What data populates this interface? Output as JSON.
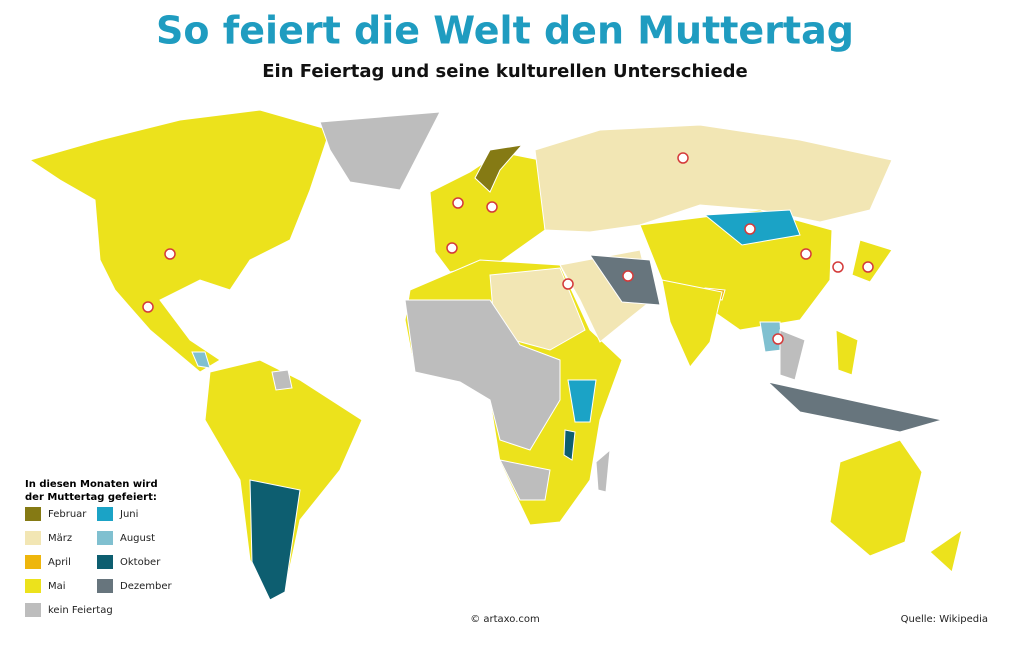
{
  "header": {
    "title": "So feiert die Welt den Muttertag",
    "subtitle": "Ein Feiertag und seine kulturellen Unterschiede"
  },
  "legend": {
    "heading": [
      "In diesen Monaten wird",
      "der Muttertag gefeiert:"
    ],
    "items": [
      {
        "label": "Februar",
        "color": "#857a14"
      },
      {
        "label": "März",
        "color": "#f2e6b4"
      },
      {
        "label": "April",
        "color": "#eeb60c"
      },
      {
        "label": "Mai",
        "color": "#ece21c"
      },
      {
        "label": "kein Feiertag",
        "color": "#bdbdbd"
      },
      {
        "label": "Juni",
        "color": "#1ba3c6"
      },
      {
        "label": "August",
        "color": "#80c0d0"
      },
      {
        "label": "Oktober",
        "color": "#0d5e70"
      },
      {
        "label": "Dezember",
        "color": "#67757d"
      }
    ]
  },
  "footer": {
    "copyright": "© artaxo.com",
    "source": "Quelle: Wikipedia"
  }
}
